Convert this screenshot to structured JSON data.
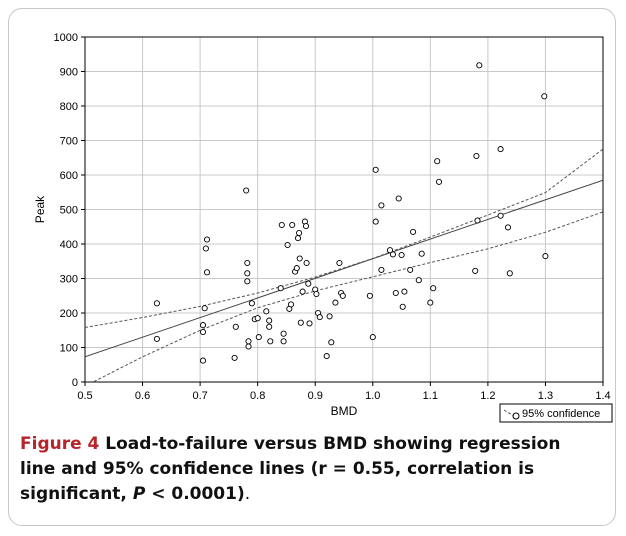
{
  "chart_data": {
    "type": "scatter",
    "xlabel": "BMD",
    "ylabel": "Peak",
    "xlim": [
      0.5,
      1.4
    ],
    "ylim": [
      0,
      1000
    ],
    "xticks": [
      "0.5",
      "0.6",
      "0.7",
      "0.8",
      "0.9",
      "1.0",
      "1.1",
      "1.2",
      "1.3",
      "1.4"
    ],
    "yticks": [
      "0",
      "100",
      "200",
      "300",
      "400",
      "500",
      "600",
      "700",
      "800",
      "900",
      "1000"
    ],
    "grid": true,
    "legend": {
      "placement": "bottom-right",
      "label": "95% confidence"
    },
    "regression": {
      "x": [
        0.5,
        1.4
      ],
      "y": [
        73,
        585
      ]
    },
    "confidence_upper": {
      "x": [
        0.5,
        0.6,
        0.7,
        0.8,
        0.9,
        1.0,
        1.1,
        1.2,
        1.3,
        1.4
      ],
      "y": [
        158,
        187,
        219,
        258,
        304,
        358,
        420,
        484,
        549,
        675
      ]
    },
    "confidence_lower": {
      "x": [
        0.5,
        0.6,
        0.7,
        0.8,
        0.9,
        1.0,
        1.1,
        1.2,
        1.3,
        1.4
      ],
      "y": [
        -12,
        73,
        150,
        215,
        264,
        305,
        346,
        386,
        434,
        493
      ]
    },
    "points": [
      {
        "x": 0.625,
        "y": 228
      },
      {
        "x": 0.625,
        "y": 125
      },
      {
        "x": 0.705,
        "y": 165
      },
      {
        "x": 0.705,
        "y": 145
      },
      {
        "x": 0.705,
        "y": 62
      },
      {
        "x": 0.708,
        "y": 214
      },
      {
        "x": 0.71,
        "y": 387
      },
      {
        "x": 0.712,
        "y": 413
      },
      {
        "x": 0.712,
        "y": 318
      },
      {
        "x": 0.76,
        "y": 70
      },
      {
        "x": 0.762,
        "y": 160
      },
      {
        "x": 0.78,
        "y": 555
      },
      {
        "x": 0.782,
        "y": 345
      },
      {
        "x": 0.782,
        "y": 315
      },
      {
        "x": 0.782,
        "y": 292
      },
      {
        "x": 0.784,
        "y": 118
      },
      {
        "x": 0.784,
        "y": 103
      },
      {
        "x": 0.79,
        "y": 228
      },
      {
        "x": 0.795,
        "y": 182
      },
      {
        "x": 0.8,
        "y": 185
      },
      {
        "x": 0.802,
        "y": 130
      },
      {
        "x": 0.815,
        "y": 205
      },
      {
        "x": 0.82,
        "y": 160
      },
      {
        "x": 0.82,
        "y": 178
      },
      {
        "x": 0.822,
        "y": 118
      },
      {
        "x": 0.84,
        "y": 272
      },
      {
        "x": 0.842,
        "y": 455
      },
      {
        "x": 0.845,
        "y": 118
      },
      {
        "x": 0.845,
        "y": 140
      },
      {
        "x": 0.852,
        "y": 397
      },
      {
        "x": 0.855,
        "y": 212
      },
      {
        "x": 0.858,
        "y": 225
      },
      {
        "x": 0.86,
        "y": 455
      },
      {
        "x": 0.865,
        "y": 320
      },
      {
        "x": 0.868,
        "y": 330
      },
      {
        "x": 0.87,
        "y": 417
      },
      {
        "x": 0.872,
        "y": 432
      },
      {
        "x": 0.873,
        "y": 358
      },
      {
        "x": 0.875,
        "y": 172
      },
      {
        "x": 0.878,
        "y": 262
      },
      {
        "x": 0.882,
        "y": 465
      },
      {
        "x": 0.884,
        "y": 452
      },
      {
        "x": 0.885,
        "y": 345
      },
      {
        "x": 0.888,
        "y": 285
      },
      {
        "x": 0.89,
        "y": 170
      },
      {
        "x": 0.9,
        "y": 268
      },
      {
        "x": 0.902,
        "y": 255
      },
      {
        "x": 0.905,
        "y": 200
      },
      {
        "x": 0.908,
        "y": 188
      },
      {
        "x": 0.92,
        "y": 75
      },
      {
        "x": 0.925,
        "y": 190
      },
      {
        "x": 0.928,
        "y": 115
      },
      {
        "x": 0.935,
        "y": 230
      },
      {
        "x": 0.942,
        "y": 345
      },
      {
        "x": 0.945,
        "y": 258
      },
      {
        "x": 0.948,
        "y": 250
      },
      {
        "x": 0.995,
        "y": 250
      },
      {
        "x": 1.0,
        "y": 130
      },
      {
        "x": 1.005,
        "y": 465
      },
      {
        "x": 1.005,
        "y": 615
      },
      {
        "x": 1.015,
        "y": 512
      },
      {
        "x": 1.015,
        "y": 325
      },
      {
        "x": 1.03,
        "y": 382
      },
      {
        "x": 1.035,
        "y": 370
      },
      {
        "x": 1.04,
        "y": 258
      },
      {
        "x": 1.045,
        "y": 532
      },
      {
        "x": 1.05,
        "y": 368
      },
      {
        "x": 1.052,
        "y": 218
      },
      {
        "x": 1.055,
        "y": 262
      },
      {
        "x": 1.065,
        "y": 325
      },
      {
        "x": 1.07,
        "y": 435
      },
      {
        "x": 1.08,
        "y": 295
      },
      {
        "x": 1.085,
        "y": 372
      },
      {
        "x": 1.1,
        "y": 230
      },
      {
        "x": 1.105,
        "y": 272
      },
      {
        "x": 1.112,
        "y": 640
      },
      {
        "x": 1.115,
        "y": 580
      },
      {
        "x": 1.178,
        "y": 322
      },
      {
        "x": 1.18,
        "y": 655
      },
      {
        "x": 1.182,
        "y": 468
      },
      {
        "x": 1.185,
        "y": 918
      },
      {
        "x": 1.222,
        "y": 675
      },
      {
        "x": 1.222,
        "y": 482
      },
      {
        "x": 1.235,
        "y": 448
      },
      {
        "x": 1.238,
        "y": 315
      },
      {
        "x": 1.298,
        "y": 828
      },
      {
        "x": 1.3,
        "y": 365
      }
    ]
  },
  "caption": {
    "lead": "Figure 4",
    "body": " Load-to-failure versus BMD showing regression line and 95% confidence lines (r = 0.55, correlation is significant, ",
    "p_symbol": "P",
    "body_end": " < 0.0001)",
    "tail": "."
  },
  "colors": {
    "grid": "#c8c8c8",
    "axis": "#000000",
    "line": "#555555",
    "caption_lead": "#b5252b"
  }
}
